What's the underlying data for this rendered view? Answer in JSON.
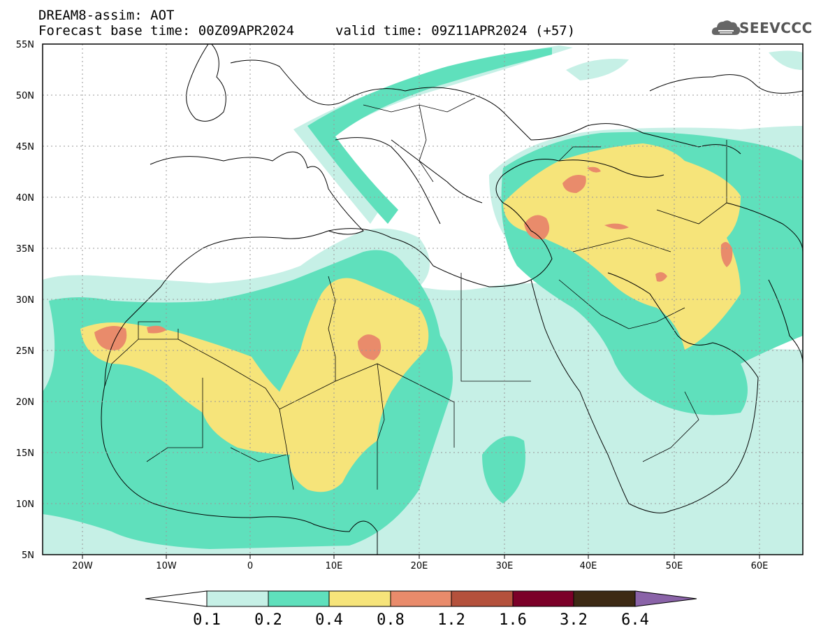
{
  "header": {
    "title": "DREAM8-assim: AOT",
    "base_time": "Forecast base time: 00Z09APR2024",
    "valid_time": "valid time: 09Z11APR2024 (+57)"
  },
  "logo": {
    "text": "SEEVCCC",
    "icon": "cloud-icon"
  },
  "map": {
    "lat_labels": [
      "55N",
      "50N",
      "45N",
      "40N",
      "35N",
      "30N",
      "25N",
      "20N",
      "15N",
      "10N",
      "5N"
    ],
    "lon_labels": [
      "20W",
      "10W",
      "0",
      "10E",
      "20E",
      "30E",
      "40E",
      "50E",
      "60E"
    ],
    "lat_range": [
      5,
      55
    ],
    "lon_range": [
      -25,
      65
    ],
    "grid": "dotted"
  },
  "colorbar": {
    "labels": [
      "0.1",
      "0.2",
      "0.4",
      "0.8",
      "1.2",
      "1.6",
      "3.2",
      "6.4"
    ],
    "colors": [
      "#ffffff",
      "#c6f0e6",
      "#5fe0bc",
      "#f6e47a",
      "#e98b6b",
      "#b4513c",
      "#7b0028",
      "#3d2a14",
      "#8a63a8"
    ]
  }
}
